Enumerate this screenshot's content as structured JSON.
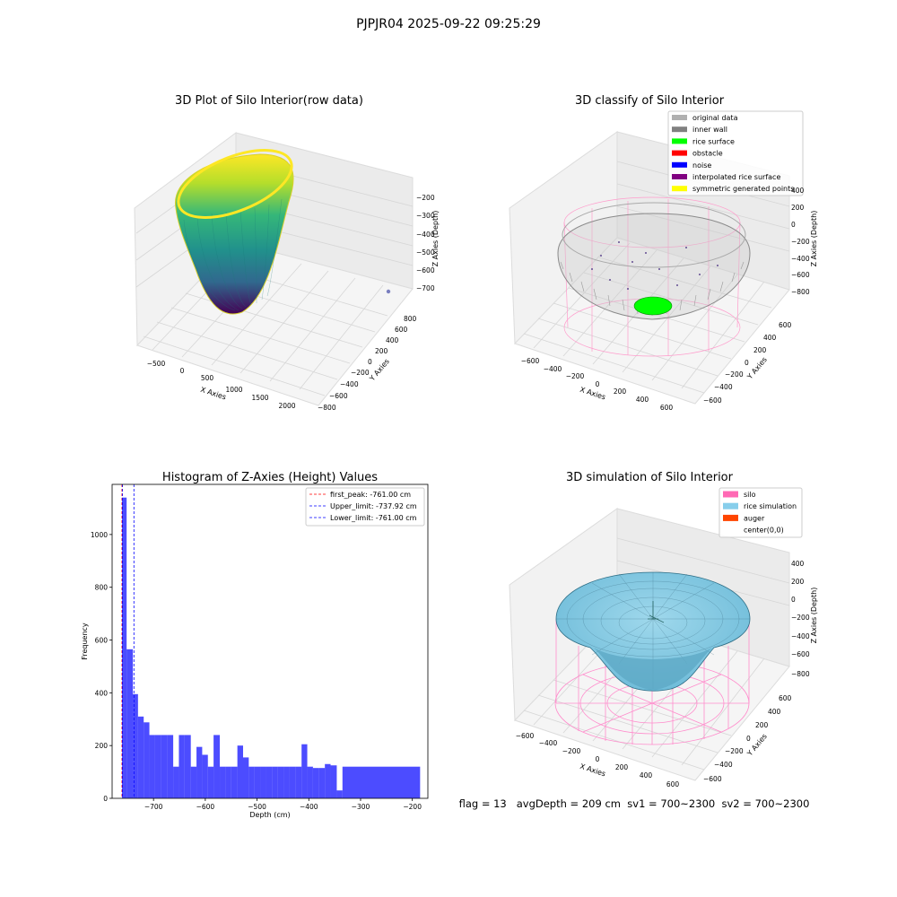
{
  "suptitle": "PJPJR04 2025-09-22 09:25:29",
  "panels": {
    "raw": {
      "title": "3D Plot of Silo Interior(row data)",
      "xlabel": "X Axies",
      "ylabel": "Y Axies",
      "zlabel": "Z Axies (Depth)",
      "xticks": [
        "−500",
        "0",
        "500",
        "1000",
        "1500",
        "2000"
      ],
      "yticks": [
        "800",
        "600",
        "400",
        "200",
        "0",
        "−200",
        "−400",
        "−600",
        "−800"
      ],
      "zticks": [
        "−200",
        "−300",
        "−400",
        "−500",
        "−600",
        "−700"
      ]
    },
    "classify": {
      "title": "3D classify of Silo Interior",
      "xlabel": "X Axies",
      "ylabel": "Y Axies",
      "zlabel": "Z Axies (Depth)",
      "xticks": [
        "−600",
        "−400",
        "−200",
        "0",
        "200",
        "400",
        "600"
      ],
      "yticks": [
        "600",
        "400",
        "200",
        "0",
        "−200",
        "−400",
        "−600"
      ],
      "zticks": [
        "400",
        "200",
        "0",
        "−200",
        "−400",
        "−600",
        "−800"
      ],
      "legend": [
        {
          "label": "original data",
          "color": "#b0b0b0"
        },
        {
          "label": "inner wall",
          "color": "#808080"
        },
        {
          "label": "rice surface",
          "color": "#00ff00"
        },
        {
          "label": "obstacle",
          "color": "#ff0000"
        },
        {
          "label": "noise",
          "color": "#0000ff"
        },
        {
          "label": "interpolated rice surface",
          "color": "#800080"
        },
        {
          "label": "symmetric generated points",
          "color": "#ffff00"
        }
      ]
    },
    "simulation": {
      "title": "3D simulation of Silo Interior",
      "xlabel": "X Axies",
      "ylabel": "Y Axies",
      "zlabel": "Z Axies (Depth)",
      "xticks": [
        "−600",
        "−400",
        "−200",
        "0",
        "200",
        "400",
        "600"
      ],
      "yticks": [
        "600",
        "400",
        "200",
        "0",
        "−200",
        "−400",
        "−600"
      ],
      "zticks": [
        "400",
        "200",
        "0",
        "−200",
        "−400",
        "−600",
        "−800"
      ],
      "legend": [
        {
          "label": "silo",
          "color": "#ff69b4"
        },
        {
          "label": "rice simulation",
          "color": "#87ceeb"
        },
        {
          "label": "auger",
          "color": "#ff4500"
        },
        {
          "label": "center(0,0)",
          "color": "#ffffff"
        }
      ]
    }
  },
  "status_text": "flag = 13   avgDepth = 209 cm  sv1 = 700~2300  sv2 = 700~2300",
  "chart_data": {
    "type": "bar",
    "title": "Histogram of Z-Axies (Height) Values",
    "xlabel": "Depth (cm)",
    "ylabel": "Frequency",
    "xlim": [
      -780,
      -170
    ],
    "ylim": [
      0,
      1190
    ],
    "xticks": [
      -700,
      -600,
      -500,
      -400,
      -300,
      -200
    ],
    "yticks": [
      0,
      200,
      400,
      600,
      800,
      1000
    ],
    "bar_color": "#0000ff",
    "bars": [
      {
        "x0": -761,
        "x1": -752,
        "count": 1140
      },
      {
        "x0": -752,
        "x1": -740,
        "count": 565
      },
      {
        "x0": -740,
        "x1": -730,
        "count": 395
      },
      {
        "x0": -730,
        "x1": -719,
        "count": 310
      },
      {
        "x0": -719,
        "x1": -708,
        "count": 288
      },
      {
        "x0": -708,
        "x1": -697,
        "count": 240
      },
      {
        "x0": -697,
        "x1": -685,
        "count": 240
      },
      {
        "x0": -685,
        "x1": -674,
        "count": 240
      },
      {
        "x0": -674,
        "x1": -662,
        "count": 240
      },
      {
        "x0": -662,
        "x1": -651,
        "count": 120
      },
      {
        "x0": -651,
        "x1": -640,
        "count": 240
      },
      {
        "x0": -640,
        "x1": -628,
        "count": 240
      },
      {
        "x0": -628,
        "x1": -617,
        "count": 120
      },
      {
        "x0": -617,
        "x1": -606,
        "count": 195
      },
      {
        "x0": -606,
        "x1": -595,
        "count": 165
      },
      {
        "x0": -595,
        "x1": -584,
        "count": 120
      },
      {
        "x0": -584,
        "x1": -572,
        "count": 240
      },
      {
        "x0": -572,
        "x1": -561,
        "count": 120
      },
      {
        "x0": -561,
        "x1": -550,
        "count": 120
      },
      {
        "x0": -550,
        "x1": -538,
        "count": 120
      },
      {
        "x0": -538,
        "x1": -527,
        "count": 200
      },
      {
        "x0": -527,
        "x1": -516,
        "count": 155
      },
      {
        "x0": -516,
        "x1": -505,
        "count": 120
      },
      {
        "x0": -505,
        "x1": -494,
        "count": 120
      },
      {
        "x0": -494,
        "x1": -482,
        "count": 120
      },
      {
        "x0": -482,
        "x1": -471,
        "count": 120
      },
      {
        "x0": -471,
        "x1": -460,
        "count": 120
      },
      {
        "x0": -460,
        "x1": -448,
        "count": 120
      },
      {
        "x0": -448,
        "x1": -437,
        "count": 120
      },
      {
        "x0": -437,
        "x1": -426,
        "count": 120
      },
      {
        "x0": -426,
        "x1": -414,
        "count": 120
      },
      {
        "x0": -414,
        "x1": -403,
        "count": 205
      },
      {
        "x0": -403,
        "x1": -392,
        "count": 120
      },
      {
        "x0": -392,
        "x1": -380,
        "count": 115
      },
      {
        "x0": -380,
        "x1": -369,
        "count": 115
      },
      {
        "x0": -369,
        "x1": -358,
        "count": 130
      },
      {
        "x0": -358,
        "x1": -346,
        "count": 125
      },
      {
        "x0": -346,
        "x1": -335,
        "count": 30
      },
      {
        "x0": -335,
        "x1": -185,
        "count": 120
      }
    ],
    "vlines": [
      {
        "label": "first_peak: -761.00 cm",
        "x": -761.0,
        "color": "#ff0000"
      },
      {
        "label": "Upper_limit: -737.92 cm",
        "x": -737.92,
        "color": "#0000ff"
      },
      {
        "label": "Lower_limit: -761.00 cm",
        "x": -761.0,
        "color": "#0000ff"
      }
    ]
  }
}
